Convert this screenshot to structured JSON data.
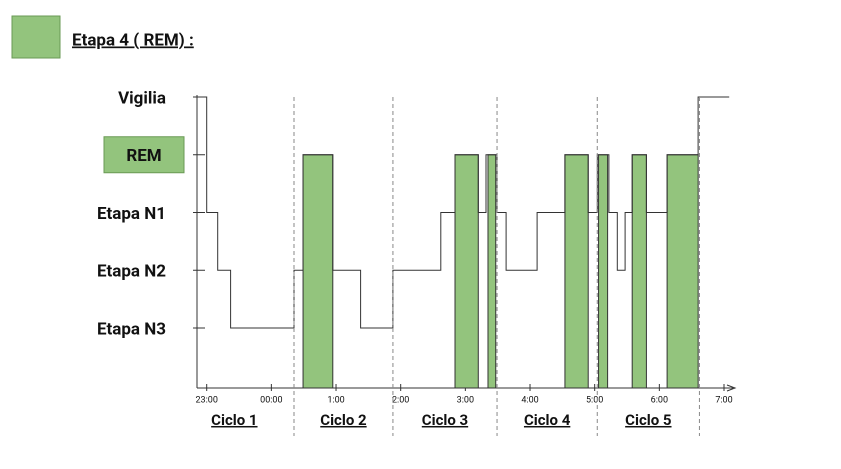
{
  "chart_data": {
    "type": "hypnogram",
    "legend": {
      "label": "Etapa 4 ( REM) :",
      "color": "#93c47d"
    },
    "y_categories": [
      "Vigilia",
      "REM",
      "Etapa N1",
      "Etapa N2",
      "Etapa N3"
    ],
    "highlight_category": "REM",
    "xlim": [
      22.85,
      31.17
    ],
    "xticks": [
      {
        "value": 23,
        "label": "23:00"
      },
      {
        "value": 24,
        "label": "00:00"
      },
      {
        "value": 25,
        "label": "1:00"
      },
      {
        "value": 26,
        "label": "2:00"
      },
      {
        "value": 27,
        "label": "3:00"
      },
      {
        "value": 28,
        "label": "4:00"
      },
      {
        "value": 29,
        "label": "5:00"
      },
      {
        "value": 30,
        "label": "6:00"
      },
      {
        "value": 31,
        "label": "7:00"
      }
    ],
    "x": [
      22.85,
      23.0,
      23.0,
      23.17,
      23.17,
      23.37,
      23.37,
      24.35,
      24.35,
      24.49,
      24.49,
      24.95,
      24.95,
      25.38,
      25.38,
      25.88,
      25.88,
      26.62,
      26.62,
      26.84,
      26.84,
      27.2,
      27.2,
      27.32,
      27.32,
      27.49,
      27.49,
      27.63,
      27.63,
      28.11,
      28.11,
      28.54,
      28.54,
      28.9,
      28.9,
      29.04,
      29.04,
      29.22,
      29.22,
      29.35,
      29.35,
      29.47,
      29.47,
      29.58,
      29.58,
      29.8,
      29.8,
      30.12,
      30.12,
      30.6,
      30.6,
      31.08
    ],
    "values": [
      "Vigilia",
      "Vigilia",
      "Etapa N1",
      "Etapa N1",
      "Etapa N2",
      "Etapa N2",
      "Etapa N3",
      "Etapa N3",
      "Etapa N2",
      "Etapa N2",
      "REM",
      "REM",
      "Etapa N2",
      "Etapa N2",
      "Etapa N3",
      "Etapa N3",
      "Etapa N2",
      "Etapa N2",
      "Etapa N1",
      "Etapa N1",
      "REM",
      "REM",
      "Etapa N1",
      "Etapa N1",
      "REM",
      "REM",
      "Etapa N1",
      "Etapa N1",
      "Etapa N2",
      "Etapa N2",
      "Etapa N1",
      "Etapa N1",
      "REM",
      "REM",
      "Etapa N1",
      "Etapa N1",
      "REM",
      "REM",
      "Etapa N1",
      "Etapa N1",
      "Etapa N2",
      "Etapa N2",
      "Etapa N1",
      "Etapa N1",
      "REM",
      "REM",
      "Etapa N1",
      "Etapa N1",
      "REM",
      "REM",
      "Vigilia",
      "Vigilia"
    ],
    "rem_periods": [
      [
        24.49,
        24.95
      ],
      [
        26.84,
        27.2
      ],
      [
        27.35,
        27.47
      ],
      [
        28.54,
        28.9
      ],
      [
        29.06,
        29.2
      ],
      [
        29.58,
        29.8
      ],
      [
        30.12,
        30.6
      ]
    ],
    "cycle_bounds": [
      24.35,
      25.88,
      27.49,
      29.04,
      30.62
    ],
    "cycles": [
      "Ciclo 1",
      "Ciclo 2",
      "Ciclo 3",
      "Ciclo 4",
      "Ciclo 5"
    ]
  }
}
